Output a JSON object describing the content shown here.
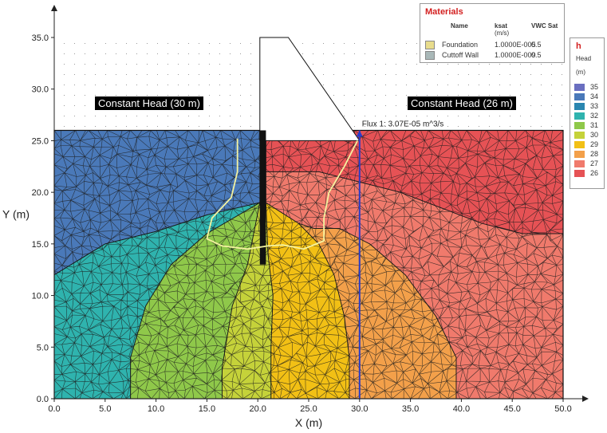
{
  "chart_data": {
    "type": "contour",
    "title": "",
    "xlabel": "X (m)",
    "ylabel": "Y (m)",
    "xlim": [
      0,
      50
    ],
    "ylim": [
      0,
      35
    ],
    "x_ticks": [
      "0.0",
      "5.0",
      "10.0",
      "15.0",
      "20.0",
      "25.0",
      "30.0",
      "35.0",
      "40.0",
      "45.0",
      "50.0"
    ],
    "y_ticks": [
      "0.0",
      "5.0",
      "10.0",
      "15.0",
      "20.0",
      "25.0",
      "30.0",
      "35.0"
    ],
    "x_tick_values": [
      0,
      5,
      10,
      15,
      20,
      25,
      30,
      35,
      40,
      45,
      50
    ],
    "y_tick_values": [
      0,
      5,
      10,
      15,
      20,
      25,
      30,
      35
    ],
    "domain": {
      "x": [
        0,
        50
      ],
      "y": [
        0,
        26
      ]
    },
    "dam_outline": [
      [
        20.2,
        35
      ],
      [
        23,
        35
      ],
      [
        30,
        25
      ],
      [
        20.2,
        25
      ]
    ],
    "cutoff_wall": {
      "x": [
        20.2,
        20.8
      ],
      "y": [
        13,
        26
      ]
    },
    "contour_regions": [
      {
        "head": 34,
        "color": "#4a79b9",
        "polygon": [
          [
            0,
            26
          ],
          [
            20.2,
            26
          ],
          [
            20.2,
            19
          ],
          [
            15,
            17.8
          ],
          [
            10,
            16.2
          ],
          [
            5,
            15
          ],
          [
            0,
            12
          ]
        ]
      },
      {
        "head": 33,
        "color": "#2a86b0",
        "polygon": [
          [
            0,
            12
          ],
          [
            5,
            15
          ],
          [
            10,
            16.2
          ],
          [
            15,
            17.8
          ],
          [
            20.2,
            19
          ],
          [
            20,
            18.5
          ],
          [
            15.5,
            16.8
          ],
          [
            10,
            15.5
          ],
          [
            5,
            14
          ],
          [
            0,
            12
          ]
        ]
      },
      {
        "head": 32,
        "color": "#2fb3ae",
        "polygon": [
          [
            0,
            0
          ],
          [
            7.5,
            0
          ],
          [
            7.5,
            4
          ],
          [
            9,
            9
          ],
          [
            11.5,
            13
          ],
          [
            15,
            16
          ],
          [
            20.2,
            19
          ],
          [
            15,
            17.8
          ],
          [
            10,
            16.2
          ],
          [
            5,
            15
          ],
          [
            0,
            12
          ]
        ]
      },
      {
        "head": 31,
        "color": "#8fc84a",
        "polygon": [
          [
            7.5,
            0
          ],
          [
            16.5,
            0
          ],
          [
            16.5,
            3
          ],
          [
            17.5,
            9
          ],
          [
            19,
            13
          ],
          [
            20.2,
            19
          ],
          [
            15,
            16
          ],
          [
            11.5,
            13
          ],
          [
            9,
            9
          ],
          [
            7.5,
            4
          ]
        ]
      },
      {
        "head": 30,
        "color": "#c5d23a",
        "polygon": [
          [
            16.5,
            0
          ],
          [
            21.3,
            0
          ],
          [
            21.3,
            5
          ],
          [
            21.5,
            10
          ],
          [
            21,
            14
          ],
          [
            20.8,
            19
          ],
          [
            20.2,
            19
          ],
          [
            19,
            13
          ],
          [
            17.5,
            9
          ],
          [
            16.5,
            3
          ]
        ]
      },
      {
        "head": 29,
        "color": "#f2c015",
        "polygon": [
          [
            21.3,
            0
          ],
          [
            29,
            0
          ],
          [
            29,
            4
          ],
          [
            28.5,
            8
          ],
          [
            27.5,
            12
          ],
          [
            26,
            15
          ],
          [
            24,
            17
          ],
          [
            20.8,
            19
          ],
          [
            21,
            14
          ],
          [
            21.5,
            10
          ],
          [
            21.3,
            5
          ]
        ]
      },
      {
        "head": 28,
        "color": "#f3a04a",
        "polygon": [
          [
            29,
            0
          ],
          [
            39.5,
            0
          ],
          [
            39.5,
            4
          ],
          [
            37.5,
            8
          ],
          [
            34.5,
            12
          ],
          [
            31,
            15
          ],
          [
            28,
            16.5
          ],
          [
            25.5,
            16.5
          ],
          [
            24,
            17
          ],
          [
            26,
            15
          ],
          [
            27.5,
            12
          ],
          [
            28.5,
            8
          ],
          [
            29,
            4
          ]
        ]
      },
      {
        "head": 27,
        "color": "#f07a6c",
        "polygon": [
          [
            39.5,
            0
          ],
          [
            50,
            0
          ],
          [
            50,
            16
          ],
          [
            46,
            16
          ],
          [
            42,
            17
          ],
          [
            38,
            18.5
          ],
          [
            34,
            20
          ],
          [
            30,
            21
          ],
          [
            26,
            22
          ],
          [
            20.8,
            22
          ],
          [
            20.8,
            19
          ],
          [
            24,
            17
          ],
          [
            25.5,
            16.5
          ],
          [
            28,
            16.5
          ],
          [
            31,
            15
          ],
          [
            34.5,
            12
          ],
          [
            37.5,
            8
          ],
          [
            39.5,
            4
          ]
        ]
      },
      {
        "head": 26,
        "color": "#e65255",
        "polygon": [
          [
            20.8,
            22
          ],
          [
            26,
            22
          ],
          [
            30,
            21
          ],
          [
            34,
            20
          ],
          [
            38,
            18.5
          ],
          [
            42,
            17
          ],
          [
            46,
            16
          ],
          [
            50,
            16
          ],
          [
            50,
            26
          ],
          [
            20.8,
            26
          ]
        ]
      }
    ],
    "flux_section": {
      "x": 30,
      "y": [
        0,
        26
      ],
      "label": "Flux 1: 3.07E-05 m^3/s"
    },
    "flow_path": [
      [
        18,
        25.2
      ],
      [
        18,
        22
      ],
      [
        17.4,
        19.5
      ],
      [
        15.5,
        17.5
      ],
      [
        15,
        15.5
      ],
      [
        16.5,
        14.8
      ],
      [
        19,
        14.5
      ],
      [
        21,
        14.8
      ],
      [
        22.5,
        14.9
      ],
      [
        24.5,
        14.5
      ],
      [
        26.5,
        15.3
      ],
      [
        26.5,
        17.5
      ],
      [
        27,
        20
      ],
      [
        28.5,
        22.5
      ],
      [
        29.8,
        25
      ]
    ],
    "boundary_conditions": [
      {
        "label": "Constant Head (30 m)"
      },
      {
        "label": "Constant Head (26 m)"
      }
    ]
  },
  "materials_legend": {
    "title": "Materials",
    "headers": {
      "name": "Name",
      "ksat": "ksat",
      "ksat_unit": "(m/s)",
      "vwc": "VWC Sat"
    },
    "rows": [
      {
        "name": "Foundation",
        "ksat": "1.0000E-005",
        "vwc": "0.5",
        "color": "#e8dc8c"
      },
      {
        "name": "Cuttoff Wall",
        "ksat": "1.0000E-009",
        "vwc": "0.5",
        "color": "#a9b8b8"
      }
    ]
  },
  "head_legend": {
    "title": "h",
    "subtitle": "Head",
    "unit": "(m)",
    "items": [
      {
        "label": "35",
        "color": "#6a6fc0"
      },
      {
        "label": "34",
        "color": "#4a79b9"
      },
      {
        "label": "33",
        "color": "#2a86b0"
      },
      {
        "label": "32",
        "color": "#2fb3ae"
      },
      {
        "label": "31",
        "color": "#8fc84a"
      },
      {
        "label": "30",
        "color": "#c5d23a"
      },
      {
        "label": "29",
        "color": "#f2c015"
      },
      {
        "label": "28",
        "color": "#f3a04a"
      },
      {
        "label": "27",
        "color": "#f07a6c"
      },
      {
        "label": "26",
        "color": "#e65255"
      }
    ]
  }
}
